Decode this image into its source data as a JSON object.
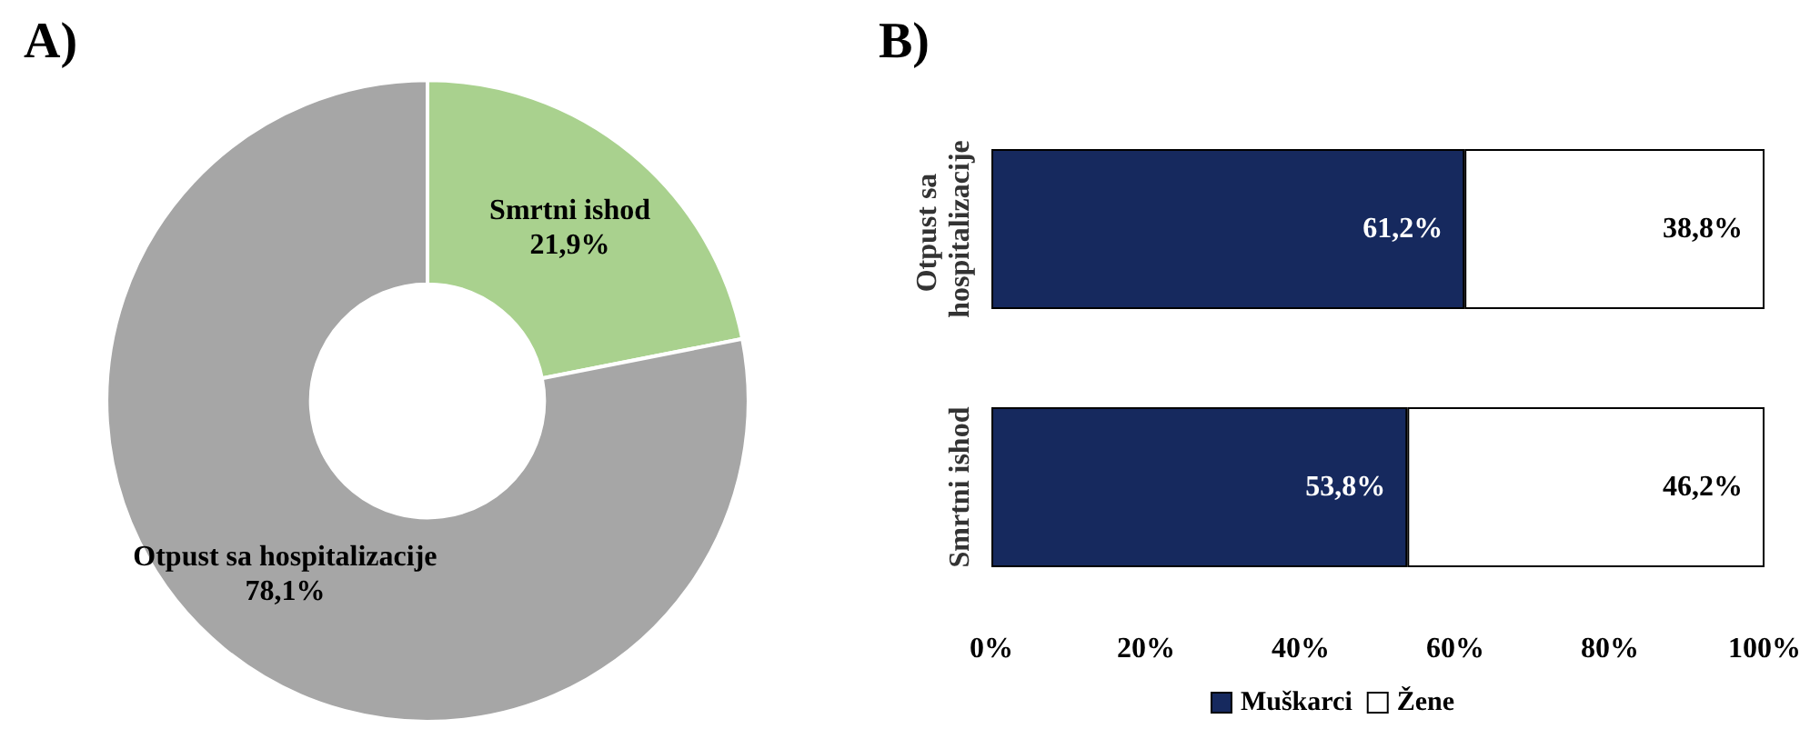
{
  "chart_data": [
    {
      "type": "donut",
      "title": "A)",
      "categories": [
        "Smrtni ishod",
        "Otpust sa hospitalizacije"
      ],
      "values": [
        21.9,
        78.1
      ],
      "colors": [
        "#a9d18e",
        "#a6a6a6"
      ],
      "value_labels": [
        "21,9%",
        "78,1%"
      ],
      "legend": false
    },
    {
      "type": "bar",
      "title": "B)",
      "orientation": "horizontal",
      "stacked": true,
      "categories": [
        "Otpust sa hospitalizacije",
        "Smrtni ishod"
      ],
      "series": [
        {
          "name": "Muškarci",
          "color": "#16295e",
          "values": [
            61.2,
            53.8
          ],
          "value_labels": [
            "61,2%",
            "53,8%"
          ]
        },
        {
          "name": "Žene",
          "color": "#ffffff",
          "values": [
            38.8,
            46.2
          ],
          "value_labels": [
            "38,8%",
            "46,2%"
          ]
        }
      ],
      "xlim": [
        0,
        100
      ],
      "xticks": [
        {
          "value": 0,
          "label": "0%"
        },
        {
          "value": 20,
          "label": "20%"
        },
        {
          "value": 40,
          "label": "40%"
        },
        {
          "value": 60,
          "label": "60%"
        },
        {
          "value": 80,
          "label": "80%"
        },
        {
          "value": 100,
          "label": "100%"
        }
      ],
      "grid": false,
      "legend": "bottom"
    }
  ]
}
